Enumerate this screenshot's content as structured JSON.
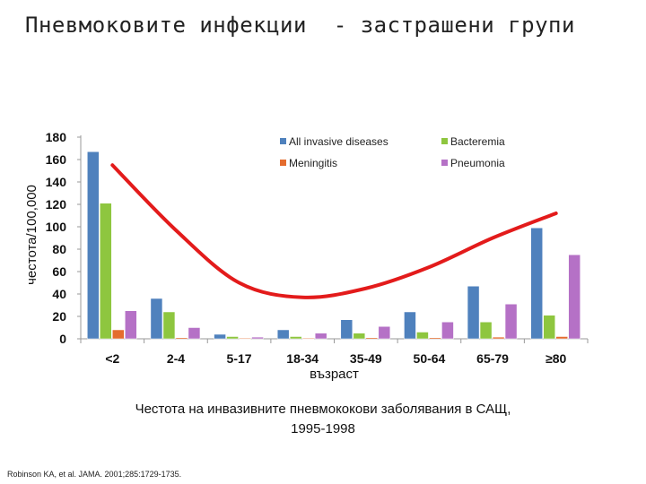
{
  "slide": {
    "title": "Пневмоковите инфекции  - застрашени групи",
    "caption_line1": "Честота на инвазивните пневмококови заболявания в САЩ,",
    "caption_line2": "1995-1998",
    "citation": "Robinson KA, et al. JAMA. 2001;285:1729-1735."
  },
  "chart_data": {
    "type": "bar",
    "title": "",
    "xlabel": "възраст",
    "ylabel": "честота/100,000",
    "ylim": [
      0,
      180
    ],
    "yticks": [
      0,
      20,
      40,
      60,
      80,
      100,
      120,
      140,
      160,
      180
    ],
    "grid": false,
    "legend_position": "top-right",
    "categories": [
      "<2",
      "2-4",
      "5-17",
      "18-34",
      "35-49",
      "50-64",
      "65-79",
      "≥80"
    ],
    "series": [
      {
        "name": "All invasive diseases",
        "color": "#4f81bd",
        "values": [
          167,
          36,
          4,
          8,
          17,
          24,
          47,
          99
        ]
      },
      {
        "name": "Meningitis",
        "color": "#e46c2e",
        "values": [
          8,
          1,
          0.5,
          0.5,
          1,
          1,
          1.5,
          2
        ]
      },
      {
        "name": "Bacteremia",
        "color": "#8ec63f",
        "values": [
          121,
          24,
          2,
          2,
          5,
          6,
          15,
          21
        ]
      },
      {
        "name": "Pneumonia",
        "color": "#b571c6",
        "values": [
          25,
          10,
          1.5,
          5,
          11,
          15,
          31,
          75
        ]
      }
    ],
    "trend_line": {
      "color": "#e31b1b",
      "x": [
        "<2",
        "2-4",
        "5-17",
        "18-34",
        "35-49",
        "50-64",
        "65-79",
        "≥80"
      ],
      "y": [
        155,
        97,
        50,
        37,
        45,
        64,
        90,
        112
      ]
    }
  }
}
